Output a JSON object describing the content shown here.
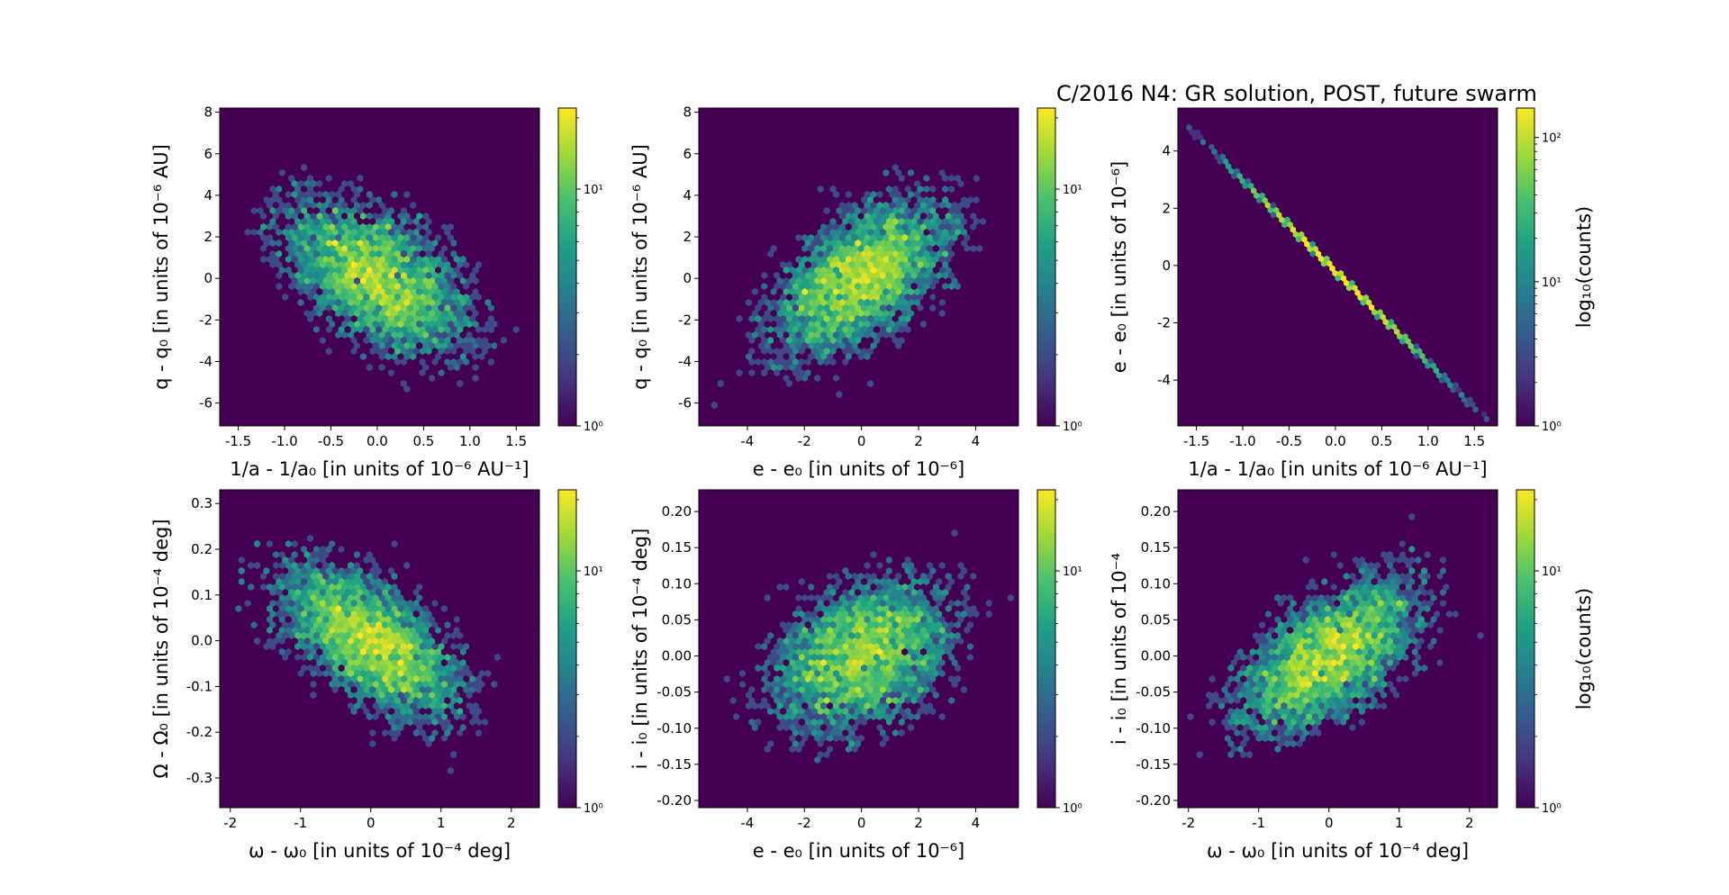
{
  "figure": {
    "title": "C/2016 N4: GR solution, POST, future swarm",
    "colormap": [
      "#440154",
      "#46327e",
      "#365c8d",
      "#277f8e",
      "#1fa187",
      "#4ac16d",
      "#a0da39",
      "#fde725"
    ]
  },
  "chart_data": [
    {
      "type": "heatmap",
      "subtype": "hexbin",
      "xlabel": "1/a - 1/a₀ [in units of 10⁻⁶ AU⁻¹]",
      "ylabel": "q - q₀ [in units of 10⁻⁶ AU]",
      "xlim": [
        -1.7,
        1.75
      ],
      "ylim": [
        -7.1,
        8.2
      ],
      "xticks": [
        "-1.5",
        "-1.0",
        "-0.5",
        "0.0",
        "0.5",
        "1.0",
        "1.5"
      ],
      "xtick_values": [
        -1.5,
        -1.0,
        -0.5,
        0.0,
        0.5,
        1.0,
        1.5
      ],
      "yticks": [
        "-6",
        "-4",
        "-2",
        "0",
        "2",
        "4",
        "6",
        "8"
      ],
      "ytick_values": [
        -6,
        -4,
        -2,
        0,
        2,
        4,
        6,
        8
      ],
      "distribution": {
        "center": [
          0,
          0
        ],
        "sigma": [
          0.55,
          2.05
        ],
        "correlation": -0.55
      },
      "colorbar": {
        "scale": "log",
        "range": [
          1,
          22
        ],
        "ticks": [
          "10⁰",
          "10¹"
        ],
        "tick_values": [
          1,
          10
        ],
        "label": ""
      }
    },
    {
      "type": "heatmap",
      "subtype": "hexbin",
      "xlabel": "e - e₀ [in units of 10⁻⁶]",
      "ylabel": "q - q₀ [in units of 10⁻⁶ AU]",
      "xlim": [
        -5.7,
        5.5
      ],
      "ylim": [
        -7.1,
        8.2
      ],
      "xticks": [
        "-4",
        "-2",
        "0",
        "2",
        "4"
      ],
      "xtick_values": [
        -4,
        -2,
        0,
        2,
        4
      ],
      "yticks": [
        "-6",
        "-4",
        "-2",
        "0",
        "2",
        "4",
        "6",
        "8"
      ],
      "ytick_values": [
        -6,
        -4,
        -2,
        0,
        2,
        4,
        6,
        8
      ],
      "distribution": {
        "center": [
          0,
          0
        ],
        "sigma": [
          1.7,
          2.05
        ],
        "correlation": 0.55
      },
      "colorbar": {
        "scale": "log",
        "range": [
          1,
          22
        ],
        "ticks": [
          "10⁰",
          "10¹"
        ],
        "tick_values": [
          1,
          10
        ],
        "label": ""
      }
    },
    {
      "type": "heatmap",
      "subtype": "hexbin",
      "xlabel": "1/a - 1/a₀ [in units of 10⁻⁶ AU⁻¹]",
      "ylabel": "e - e₀ [in units of 10⁻⁶]",
      "xlim": [
        -1.7,
        1.75
      ],
      "ylim": [
        -5.6,
        5.5
      ],
      "xticks": [
        "-1.5",
        "-1.0",
        "-0.5",
        "0.0",
        "0.5",
        "1.0",
        "1.5"
      ],
      "xtick_values": [
        -1.5,
        -1.0,
        -0.5,
        0.0,
        0.5,
        1.0,
        1.5
      ],
      "yticks": [
        "-4",
        "-2",
        "0",
        "2",
        "4"
      ],
      "ytick_values": [
        -4,
        -2,
        0,
        2,
        4
      ],
      "distribution": {
        "line": {
          "x_start": -1.6,
          "y_start": 4.9,
          "x_end": 1.6,
          "y_end": -5.3
        },
        "sigma_x": 0.55
      },
      "colorbar": {
        "scale": "log",
        "range": [
          1,
          160
        ],
        "ticks": [
          "10⁰",
          "10¹",
          "10²"
        ],
        "tick_values": [
          1,
          10,
          100
        ],
        "label": "log₁₀(counts)"
      }
    },
    {
      "type": "heatmap",
      "subtype": "hexbin",
      "xlabel": "ω - ω₀ [in units of 10⁻⁴ deg]",
      "ylabel": "Ω - Ω₀ [in units of 10⁻⁴ deg]",
      "xlim": [
        -2.15,
        2.4
      ],
      "ylim": [
        -0.365,
        0.33
      ],
      "xticks": [
        "-2",
        "-1",
        "0",
        "1",
        "2"
      ],
      "xtick_values": [
        -2,
        -1,
        0,
        1,
        2
      ],
      "yticks": [
        "-0.3",
        "-0.2",
        "-0.1",
        "0.0",
        "0.1",
        "0.2",
        "0.3"
      ],
      "ytick_values": [
        -0.3,
        -0.2,
        -0.1,
        0.0,
        0.1,
        0.2,
        0.3
      ],
      "distribution": {
        "center": [
          0,
          0
        ],
        "sigma": [
          0.7,
          0.09
        ],
        "correlation": -0.6
      },
      "colorbar": {
        "scale": "log",
        "range": [
          1,
          22
        ],
        "ticks": [
          "10⁰",
          "10¹"
        ],
        "tick_values": [
          1,
          10
        ],
        "label": ""
      }
    },
    {
      "type": "heatmap",
      "subtype": "hexbin",
      "xlabel": "e - e₀ [in units of 10⁻⁶]",
      "ylabel": "i - i₀ [in units of 10⁻⁴ deg]",
      "xlim": [
        -5.7,
        5.5
      ],
      "ylim": [
        -0.21,
        0.23
      ],
      "xticks": [
        "-4",
        "-2",
        "0",
        "2",
        "4"
      ],
      "xtick_values": [
        -4,
        -2,
        0,
        2,
        4
      ],
      "yticks": [
        "-0.20",
        "-0.15",
        "-0.10",
        "-0.05",
        "0.00",
        "0.05",
        "0.10",
        "0.15",
        "0.20"
      ],
      "ytick_values": [
        -0.2,
        -0.15,
        -0.1,
        -0.05,
        0.0,
        0.05,
        0.1,
        0.15,
        0.2
      ],
      "distribution": {
        "center": [
          0,
          0
        ],
        "sigma": [
          1.7,
          0.058
        ],
        "correlation": 0.35
      },
      "colorbar": {
        "scale": "log",
        "range": [
          1,
          22
        ],
        "ticks": [
          "10⁰",
          "10¹"
        ],
        "tick_values": [
          1,
          10
        ],
        "label": ""
      }
    },
    {
      "type": "heatmap",
      "subtype": "hexbin",
      "xlabel": "ω - ω₀ [in units of 10⁻⁴ deg]",
      "ylabel": "i - i₀ [in units of 10⁻⁴",
      "xlim": [
        -2.15,
        2.4
      ],
      "ylim": [
        -0.21,
        0.23
      ],
      "xticks": [
        "-2",
        "-1",
        "0",
        "1",
        "2"
      ],
      "xtick_values": [
        -2,
        -1,
        0,
        1,
        2
      ],
      "yticks": [
        "-0.20",
        "-0.15",
        "-0.10",
        "-0.05",
        "0.00",
        "0.05",
        "0.10",
        "0.15",
        "0.20"
      ],
      "ytick_values": [
        -0.2,
        -0.15,
        -0.1,
        -0.05,
        0.0,
        0.05,
        0.1,
        0.15,
        0.2
      ],
      "distribution": {
        "center": [
          0,
          0
        ],
        "sigma": [
          0.7,
          0.058
        ],
        "correlation": 0.6
      },
      "colorbar": {
        "scale": "log",
        "range": [
          1,
          22
        ],
        "ticks": [
          "10⁰",
          "10¹"
        ],
        "tick_values": [
          1,
          10
        ],
        "label": "log₁₀(counts)"
      }
    }
  ]
}
